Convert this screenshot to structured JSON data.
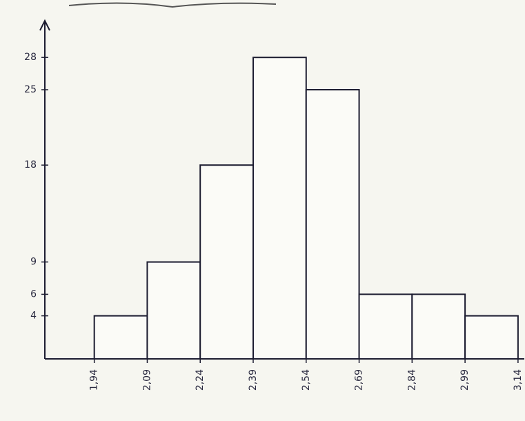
{
  "chart_data": {
    "type": "histogram",
    "bins": [
      1.94,
      2.09,
      2.24,
      2.39,
      2.54,
      2.69,
      2.84,
      2.99,
      3.14
    ],
    "values": [
      4,
      9,
      18,
      28,
      25,
      6,
      6,
      4
    ],
    "color": "#fbfbf7",
    "xlim": [
      1.8,
      3.15
    ],
    "xticks": [
      {
        "value": 1.94,
        "label": "1,94"
      },
      {
        "value": 2.09,
        "label": "2,09"
      },
      {
        "value": 2.24,
        "label": "2,24"
      },
      {
        "value": 2.39,
        "label": "2,39"
      },
      {
        "value": 2.54,
        "label": "2,54"
      },
      {
        "value": 2.69,
        "label": "2,69"
      },
      {
        "value": 2.84,
        "label": "2,84"
      },
      {
        "value": 2.99,
        "label": "2,99"
      },
      {
        "value": 3.14,
        "label": "3,14"
      }
    ],
    "ylim": [
      0,
      30
    ],
    "yticks": [
      4,
      6,
      9,
      18,
      25,
      28
    ]
  }
}
